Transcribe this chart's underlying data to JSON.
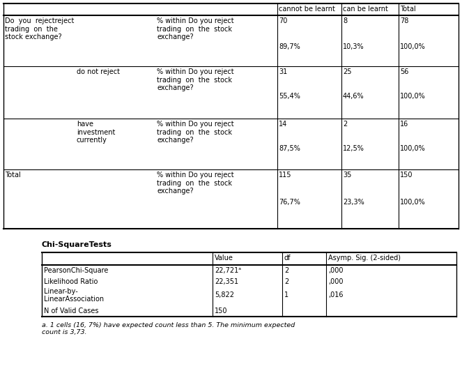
{
  "title": "Chi-SquareTests",
  "bg_color": "#ffffff",
  "line_color": "#000000",
  "font_size": 7.0,
  "main_table": {
    "header": [
      "cannot be learnt",
      "can be learnt",
      "Total"
    ],
    "rows": [
      {
        "label1": "Do  you  rejectreject\ntrading  on  the\nstock exchange?",
        "label2": "",
        "label3": "% within Do you reject\ntrading  on  the  stock\nexchange?",
        "count": [
          "70",
          "8",
          "78"
        ],
        "pct": [
          "89,7%",
          "10,3%",
          "100,0%"
        ]
      },
      {
        "label1": "",
        "label2": "do not reject",
        "label3": "% within Do you reject\ntrading  on  the  stock\nexchange?",
        "count": [
          "31",
          "25",
          "56"
        ],
        "pct": [
          "55,4%",
          "44,6%",
          "100,0%"
        ]
      },
      {
        "label1": "",
        "label2": "have\ninvestment\ncurrently",
        "label3": "% within Do you reject\ntrading  on  the  stock\nexchange?",
        "count": [
          "14",
          "2",
          "16"
        ],
        "pct": [
          "87,5%",
          "12,5%",
          "100,0%"
        ]
      },
      {
        "label1": "Total",
        "label2": "",
        "label3": "% within Do you reject\ntrading  on  the  stock\nexchange?",
        "count": [
          "115",
          "35",
          "150"
        ],
        "pct": [
          "76,7%",
          "23,3%",
          "100,0%"
        ]
      }
    ]
  },
  "chi_table": {
    "headers": [
      "",
      "Value",
      "df",
      "Asymp. Sig. (2-sided)"
    ],
    "rows": [
      [
        "PearsonChi-Square",
        "22,721ᵃ",
        "2",
        ",000"
      ],
      [
        "Likelihood Ratio",
        "22,351",
        "2",
        ",000"
      ],
      [
        "Linear-by-\nLinearAssociation",
        "5,822",
        "1",
        ",016"
      ],
      [
        "N of Valid Cases",
        "150",
        "",
        ""
      ]
    ]
  },
  "footnote": "a. 1 cells (16, 7%) have expected count less than 5. The minimum expected\ncount is 3,73."
}
